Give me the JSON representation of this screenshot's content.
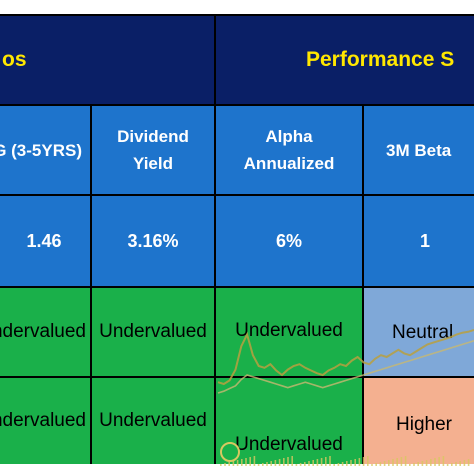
{
  "header": {
    "left_title": "os",
    "right_title": "Performance S"
  },
  "columns": [
    {
      "label": "G (3-5YRS)"
    },
    {
      "label": "Dividend\nYield"
    },
    {
      "label": "Alpha\nAnnualized"
    },
    {
      "label": "3M Beta"
    }
  ],
  "values": [
    "1.46",
    "3.16%",
    "6%",
    "1"
  ],
  "rows": [
    [
      "ndervalued",
      "Undervalued",
      "Undervalued",
      "Neutral"
    ],
    [
      "ndervalued",
      "Undervalued",
      "Undervalued",
      "Higher"
    ]
  ],
  "colors": {
    "header_bg": "#0a1f66",
    "header_text": "#ffe700",
    "blue_cell": "#1e74cc",
    "green_cell": "#1ab04a",
    "neutral_cell": "#7fa8d8",
    "higher_cell": "#f4b090"
  },
  "overlay_chart": {
    "series": [
      {
        "values": [
          0.42,
          0.4,
          0.44,
          0.56,
          0.82,
          0.95,
          0.72,
          0.6,
          0.58,
          0.62,
          0.55,
          0.5,
          0.56,
          0.6,
          0.62,
          0.58,
          0.55,
          0.52,
          0.5,
          0.55,
          0.58,
          0.62,
          0.6,
          0.66,
          0.7,
          0.64,
          0.62,
          0.68,
          0.72,
          0.7,
          0.74,
          0.78,
          0.74,
          0.72,
          0.76,
          0.8,
          0.84,
          0.86,
          0.88,
          0.9,
          0.92,
          0.95,
          0.97,
          0.98,
          1.0
        ]
      },
      {
        "values": [
          0.3,
          0.32,
          0.35,
          0.38,
          0.45,
          0.5,
          0.48,
          0.46,
          0.44,
          0.42,
          0.4,
          0.38,
          0.36,
          0.38,
          0.4,
          0.42,
          0.4,
          0.38,
          0.36,
          0.38,
          0.4,
          0.42,
          0.44,
          0.46,
          0.48,
          0.5,
          0.52,
          0.54,
          0.56,
          0.58,
          0.6,
          0.62,
          0.64,
          0.66,
          0.68,
          0.7,
          0.72,
          0.74,
          0.76,
          0.78,
          0.8,
          0.82,
          0.84,
          0.86,
          0.88
        ]
      }
    ]
  }
}
